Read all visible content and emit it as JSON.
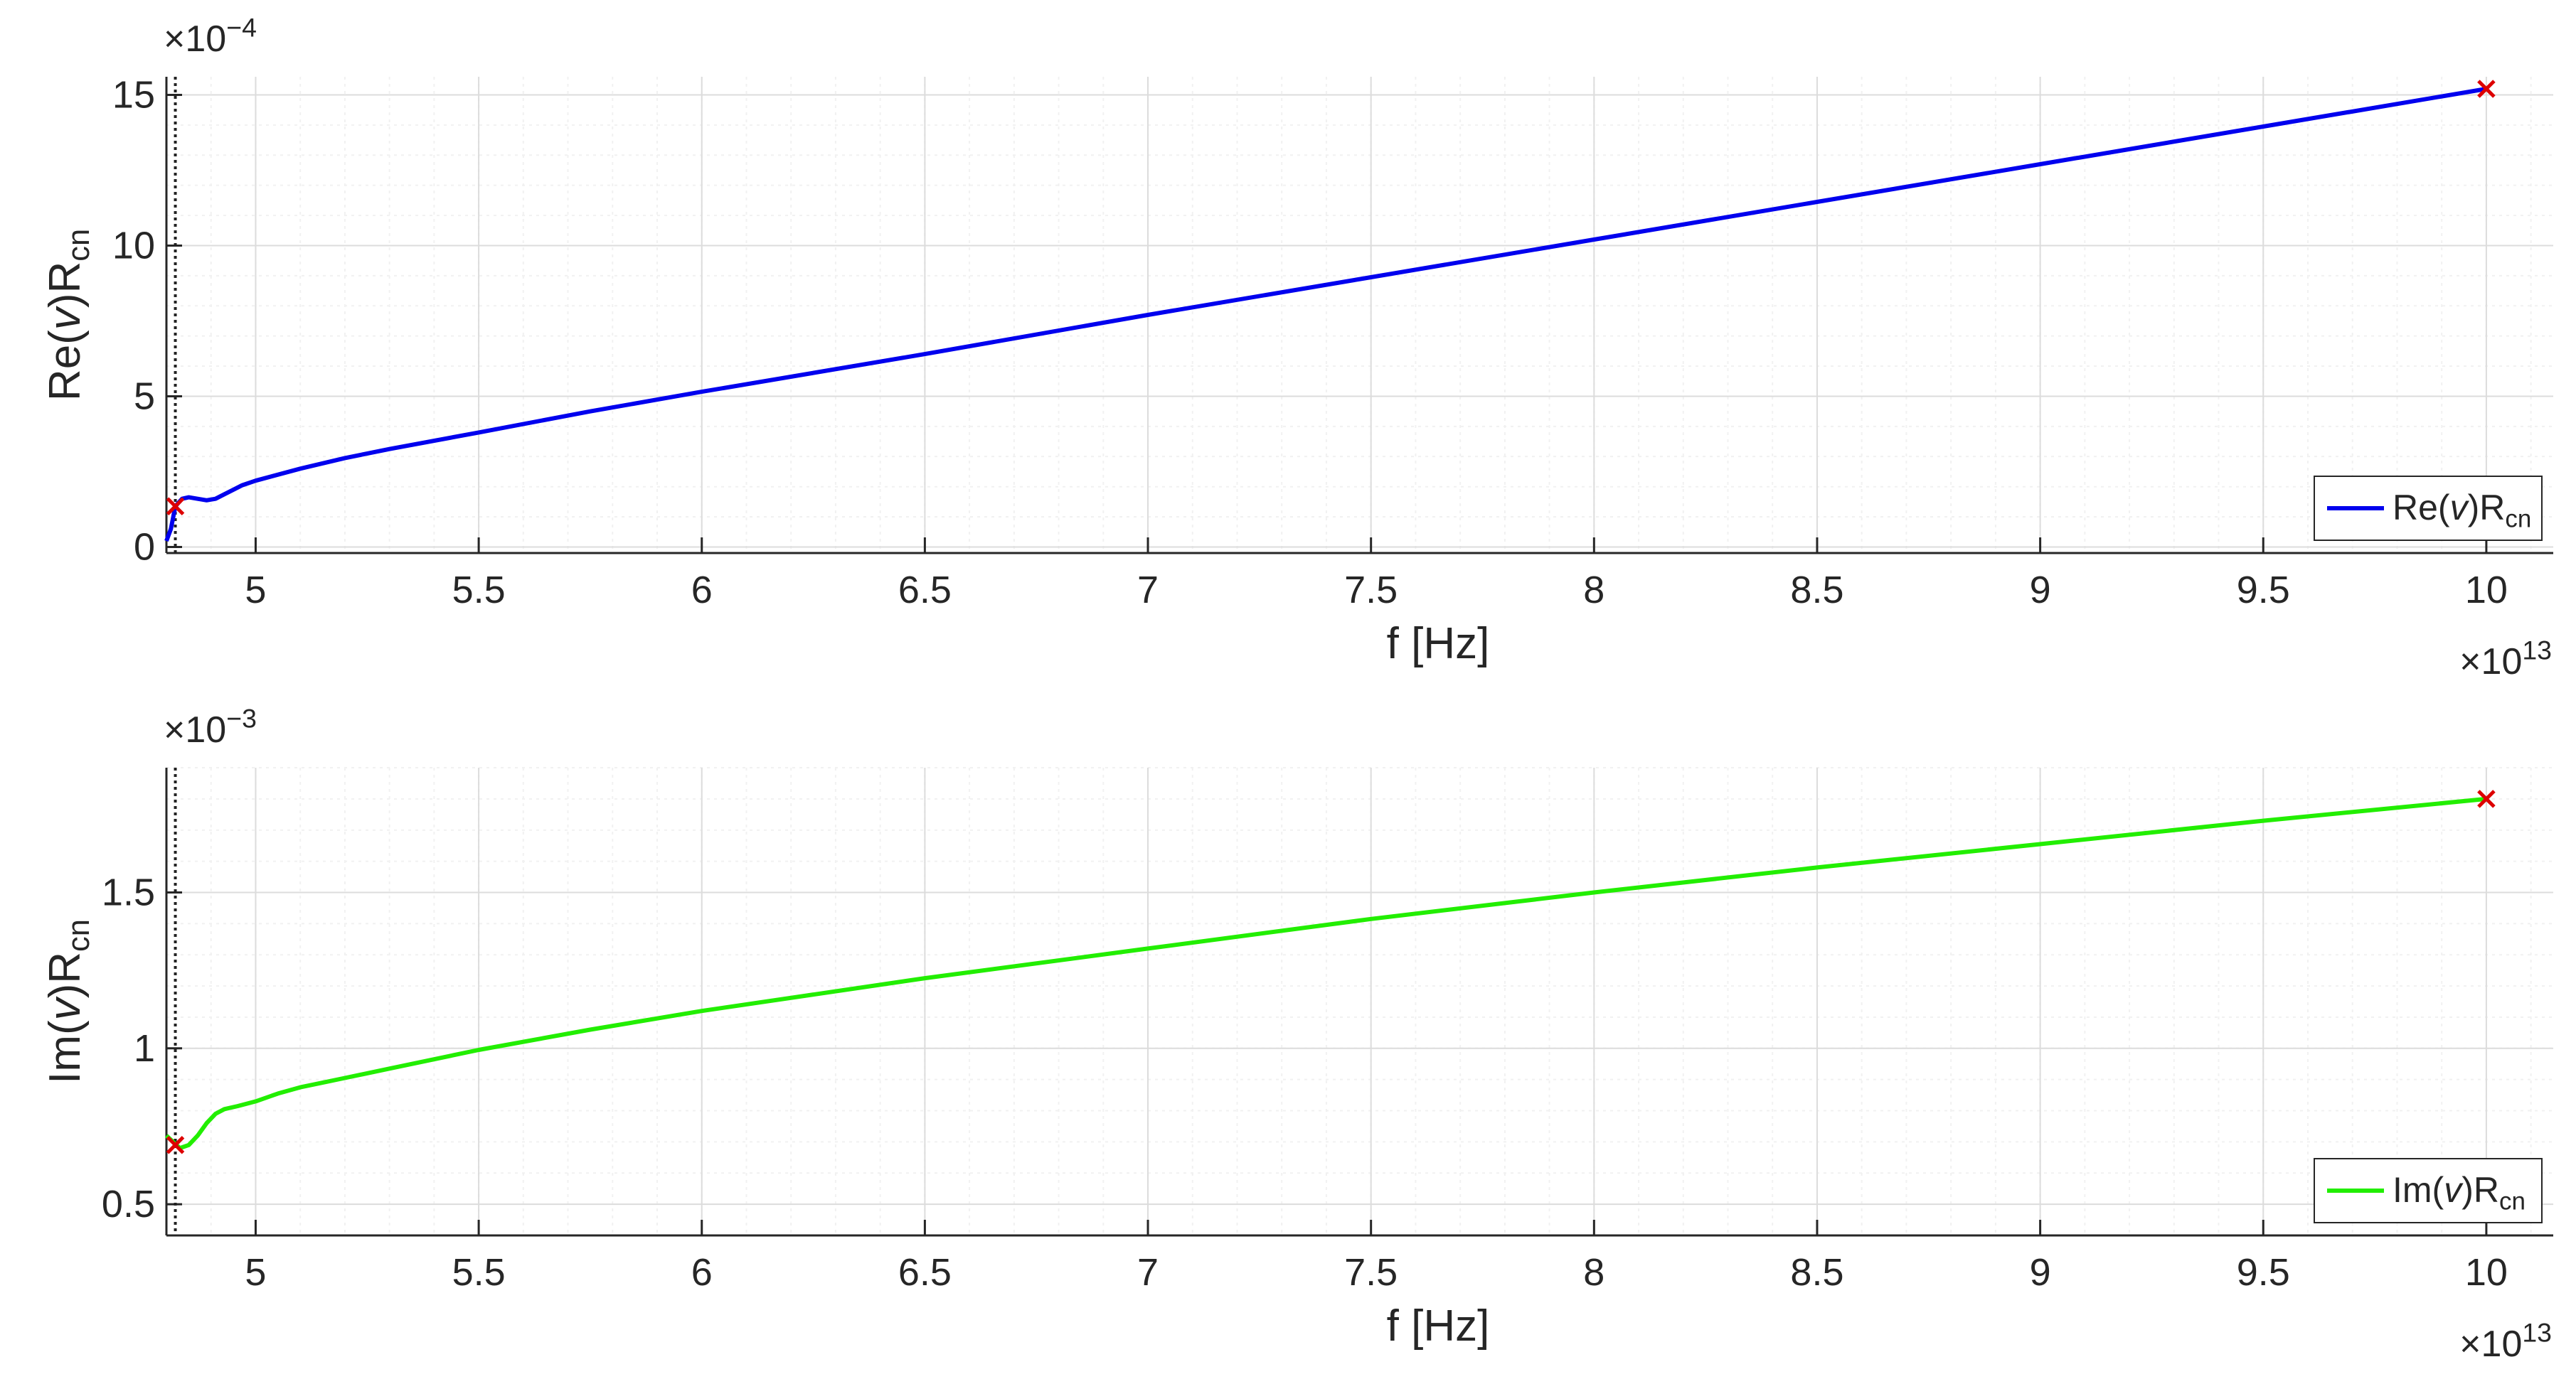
{
  "chart_data": [
    {
      "type": "line",
      "xlabel": "f [Hz]",
      "x_exponent": "13",
      "ylabel": {
        "base": "Re(",
        "italic": "v",
        "close": ")R",
        "sub": "cn"
      },
      "y_exponent": "−4",
      "xlim": [
        4.8,
        10.15
      ],
      "ylim": [
        -0.2,
        15.6
      ],
      "xticks": [
        5,
        5.5,
        6,
        6.5,
        7,
        7.5,
        8,
        8.5,
        9,
        9.5,
        10
      ],
      "xtick_labels": [
        "5",
        "5.5",
        "6",
        "6.5",
        "7",
        "7.5",
        "8",
        "8.5",
        "9",
        "9.5",
        "10"
      ],
      "yticks": [
        0,
        5,
        10,
        15
      ],
      "ytick_labels": [
        "0",
        "5",
        "10",
        "15"
      ],
      "grid": true,
      "legend_position": "bottom-right",
      "vertical_dotted_line_x": 4.82,
      "series": [
        {
          "name": "Re(v)R_cn",
          "legend": {
            "base": "Re(",
            "italic": "v",
            "close": ")R",
            "sub": "cn"
          },
          "color": "#0000ee",
          "x": [
            4.8,
            4.81,
            4.82,
            4.835,
            4.85,
            4.87,
            4.89,
            4.91,
            4.93,
            4.95,
            4.97,
            5.0,
            5.1,
            5.2,
            5.3,
            5.5,
            5.75,
            6.0,
            6.5,
            7.0,
            7.5,
            8.0,
            8.5,
            9.0,
            9.5,
            10.0
          ],
          "y": [
            0.2,
            0.6,
            1.35,
            1.6,
            1.65,
            1.6,
            1.55,
            1.6,
            1.75,
            1.9,
            2.05,
            2.2,
            2.6,
            2.95,
            3.25,
            3.8,
            4.5,
            5.15,
            6.4,
            7.7,
            8.95,
            10.2,
            11.45,
            12.7,
            13.95,
            15.2
          ]
        }
      ],
      "markers": [
        {
          "x": 4.82,
          "y": 1.35,
          "color": "#dd0000"
        },
        {
          "x": 10.0,
          "y": 15.2,
          "color": "#dd0000"
        }
      ]
    },
    {
      "type": "line",
      "xlabel": "f [Hz]",
      "x_exponent": "13",
      "ylabel": {
        "base": "Im(",
        "italic": "v",
        "close": ")R",
        "sub": "cn"
      },
      "y_exponent": "−3",
      "xlim": [
        4.8,
        10.15
      ],
      "ylim": [
        0.4,
        1.9
      ],
      "xticks": [
        5,
        5.5,
        6,
        6.5,
        7,
        7.5,
        8,
        8.5,
        9,
        9.5,
        10
      ],
      "xtick_labels": [
        "5",
        "5.5",
        "6",
        "6.5",
        "7",
        "7.5",
        "8",
        "8.5",
        "9",
        "9.5",
        "10"
      ],
      "yticks": [
        0.5,
        1,
        1.5
      ],
      "ytick_labels": [
        "0.5",
        "1",
        "1.5"
      ],
      "grid": true,
      "legend_position": "bottom-right",
      "vertical_dotted_line_x": 4.82,
      "series": [
        {
          "name": "Im(v)R_cn",
          "legend": {
            "base": "Im(",
            "italic": "v",
            "close": ")R",
            "sub": "cn"
          },
          "color": "#22ee00",
          "x": [
            4.8,
            4.815,
            4.83,
            4.85,
            4.87,
            4.89,
            4.91,
            4.93,
            4.96,
            5.0,
            5.05,
            5.1,
            5.2,
            5.3,
            5.5,
            5.75,
            6.0,
            6.5,
            7.0,
            7.5,
            8.0,
            8.5,
            9.0,
            9.5,
            10.0
          ],
          "y": [
            0.72,
            0.7,
            0.68,
            0.69,
            0.72,
            0.76,
            0.79,
            0.805,
            0.815,
            0.83,
            0.855,
            0.875,
            0.905,
            0.935,
            0.995,
            1.06,
            1.12,
            1.225,
            1.32,
            1.415,
            1.5,
            1.58,
            1.655,
            1.73,
            1.8
          ]
        }
      ],
      "markers": [
        {
          "x": 4.82,
          "y": 0.69,
          "color": "#dd0000"
        },
        {
          "x": 10.0,
          "y": 1.8,
          "color": "#dd0000"
        }
      ]
    }
  ]
}
